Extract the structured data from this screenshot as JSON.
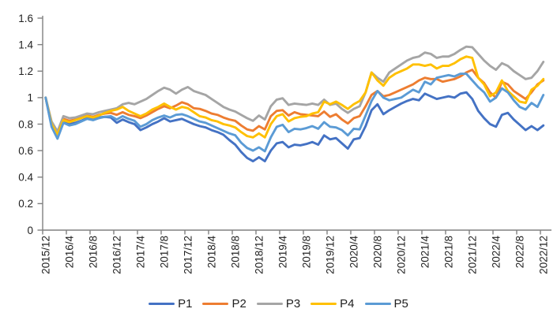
{
  "chart_data": {
    "type": "line",
    "title": "",
    "x_axis": {
      "label": "",
      "tick_labels": [
        "2015/12",
        "2016/4",
        "2016/8",
        "2016/12",
        "2017/4",
        "2017/8",
        "2017/12",
        "2018/4",
        "2018/8",
        "2018/12",
        "2019/4",
        "2019/8",
        "2019/12",
        "2020/4",
        "2020/8",
        "2020/12",
        "2021/4",
        "2021/8",
        "2021/12",
        "2022/4",
        "2022/8",
        "2022/12"
      ],
      "tick_every_n_points": 4,
      "points_per_series": 85
    },
    "y_axis": {
      "label": "",
      "tick_labels": [
        "1.6",
        "1.4",
        "1.2",
        "1",
        "0.8",
        "0.6",
        "0.4",
        "0.2",
        "0"
      ],
      "min": 0,
      "max": 1.6,
      "step": 0.2
    },
    "grid": false,
    "legend": {
      "position": "bottom",
      "entries": [
        "P1",
        "P2",
        "P3",
        "P4",
        "P5"
      ]
    },
    "colors": {
      "axis": "#808080",
      "tick_text": "#1f1f1f",
      "background": "#FFFFFF"
    },
    "series": [
      {
        "name": "P1",
        "color": "#4472C4",
        "values": [
          1.0,
          0.79,
          0.71,
          0.82,
          0.8,
          0.81,
          0.825,
          0.845,
          0.835,
          0.85,
          0.855,
          0.85,
          0.81,
          0.835,
          0.815,
          0.8,
          0.755,
          0.775,
          0.8,
          0.82,
          0.845,
          0.82,
          0.83,
          0.84,
          0.82,
          0.8,
          0.785,
          0.775,
          0.755,
          0.74,
          0.72,
          0.68,
          0.645,
          0.59,
          0.545,
          0.52,
          0.55,
          0.52,
          0.6,
          0.655,
          0.665,
          0.625,
          0.645,
          0.64,
          0.65,
          0.665,
          0.645,
          0.715,
          0.685,
          0.695,
          0.655,
          0.615,
          0.685,
          0.695,
          0.785,
          0.905,
          0.95,
          0.875,
          0.905,
          0.93,
          0.955,
          0.975,
          0.99,
          0.98,
          1.03,
          1.01,
          0.99,
          1.0,
          1.01,
          1.0,
          1.03,
          1.04,
          0.99,
          0.9,
          0.845,
          0.8,
          0.78,
          0.87,
          0.885,
          0.835,
          0.795,
          0.755,
          0.785,
          0.755,
          0.79
        ]
      },
      {
        "name": "P2",
        "color": "#ED7D31",
        "values": [
          1.0,
          0.81,
          0.73,
          0.84,
          0.825,
          0.835,
          0.85,
          0.865,
          0.855,
          0.87,
          0.88,
          0.885,
          0.87,
          0.89,
          0.87,
          0.86,
          0.845,
          0.865,
          0.89,
          0.915,
          0.935,
          0.92,
          0.94,
          0.965,
          0.95,
          0.92,
          0.915,
          0.9,
          0.88,
          0.87,
          0.85,
          0.835,
          0.825,
          0.79,
          0.76,
          0.75,
          0.785,
          0.76,
          0.86,
          0.9,
          0.905,
          0.865,
          0.89,
          0.875,
          0.87,
          0.865,
          0.86,
          0.895,
          0.855,
          0.875,
          0.835,
          0.805,
          0.845,
          0.86,
          0.935,
          1.02,
          1.05,
          1.01,
          1.02,
          1.04,
          1.06,
          1.08,
          1.1,
          1.13,
          1.15,
          1.14,
          1.14,
          1.12,
          1.13,
          1.14,
          1.16,
          1.19,
          1.21,
          1.15,
          1.11,
          1.04,
          1.0,
          1.12,
          1.1,
          1.05,
          1.02,
          0.99,
          1.04,
          1.1,
          1.13
        ]
      },
      {
        "name": "P3",
        "color": "#A5A5A5",
        "values": [
          1.0,
          0.82,
          0.745,
          0.86,
          0.845,
          0.85,
          0.865,
          0.88,
          0.875,
          0.89,
          0.9,
          0.91,
          0.92,
          0.95,
          0.96,
          0.95,
          0.97,
          0.99,
          1.02,
          1.05,
          1.075,
          1.06,
          1.03,
          1.06,
          1.08,
          1.05,
          1.035,
          1.02,
          0.99,
          0.96,
          0.93,
          0.91,
          0.895,
          0.87,
          0.845,
          0.825,
          0.865,
          0.835,
          0.935,
          0.985,
          0.995,
          0.945,
          0.955,
          0.95,
          0.945,
          0.955,
          0.945,
          0.985,
          0.945,
          0.955,
          0.915,
          0.885,
          0.915,
          0.935,
          1.04,
          1.19,
          1.15,
          1.12,
          1.19,
          1.22,
          1.25,
          1.28,
          1.3,
          1.31,
          1.34,
          1.33,
          1.3,
          1.31,
          1.31,
          1.33,
          1.36,
          1.385,
          1.38,
          1.33,
          1.28,
          1.24,
          1.21,
          1.26,
          1.24,
          1.2,
          1.17,
          1.14,
          1.15,
          1.2,
          1.27
        ]
      },
      {
        "name": "P4",
        "color": "#FFC000",
        "values": [
          1.0,
          0.8,
          0.72,
          0.83,
          0.815,
          0.83,
          0.845,
          0.86,
          0.85,
          0.865,
          0.885,
          0.9,
          0.91,
          0.93,
          0.9,
          0.88,
          0.86,
          0.88,
          0.91,
          0.93,
          0.955,
          0.93,
          0.91,
          0.93,
          0.92,
          0.89,
          0.86,
          0.85,
          0.83,
          0.82,
          0.8,
          0.79,
          0.775,
          0.74,
          0.71,
          0.7,
          0.73,
          0.7,
          0.8,
          0.86,
          0.875,
          0.82,
          0.845,
          0.855,
          0.86,
          0.88,
          0.89,
          0.97,
          0.95,
          0.97,
          0.945,
          0.915,
          0.95,
          0.975,
          1.04,
          1.19,
          1.13,
          1.09,
          1.15,
          1.18,
          1.2,
          1.22,
          1.25,
          1.25,
          1.24,
          1.25,
          1.22,
          1.24,
          1.24,
          1.26,
          1.29,
          1.31,
          1.3,
          1.15,
          1.1,
          1.01,
          1.04,
          1.13,
          1.05,
          1.01,
          0.97,
          0.96,
          1.06,
          1.09,
          1.14
        ]
      },
      {
        "name": "P5",
        "color": "#5B9BD5",
        "values": [
          1.0,
          0.78,
          0.69,
          0.81,
          0.79,
          0.8,
          0.82,
          0.84,
          0.83,
          0.845,
          0.855,
          0.86,
          0.835,
          0.86,
          0.84,
          0.825,
          0.78,
          0.8,
          0.83,
          0.85,
          0.865,
          0.85,
          0.87,
          0.875,
          0.86,
          0.84,
          0.82,
          0.81,
          0.79,
          0.77,
          0.75,
          0.73,
          0.716,
          0.66,
          0.62,
          0.6,
          0.625,
          0.595,
          0.7,
          0.78,
          0.795,
          0.74,
          0.765,
          0.76,
          0.77,
          0.785,
          0.765,
          0.815,
          0.78,
          0.775,
          0.755,
          0.715,
          0.765,
          0.76,
          0.865,
          0.975,
          1.05,
          1.0,
          0.98,
          0.99,
          1.0,
          1.03,
          1.06,
          1.04,
          1.12,
          1.1,
          1.15,
          1.16,
          1.17,
          1.16,
          1.18,
          1.18,
          1.13,
          1.08,
          1.04,
          0.97,
          1.0,
          1.07,
          1.04,
          0.98,
          0.93,
          0.91,
          0.96,
          0.93,
          1.02
        ]
      }
    ]
  }
}
